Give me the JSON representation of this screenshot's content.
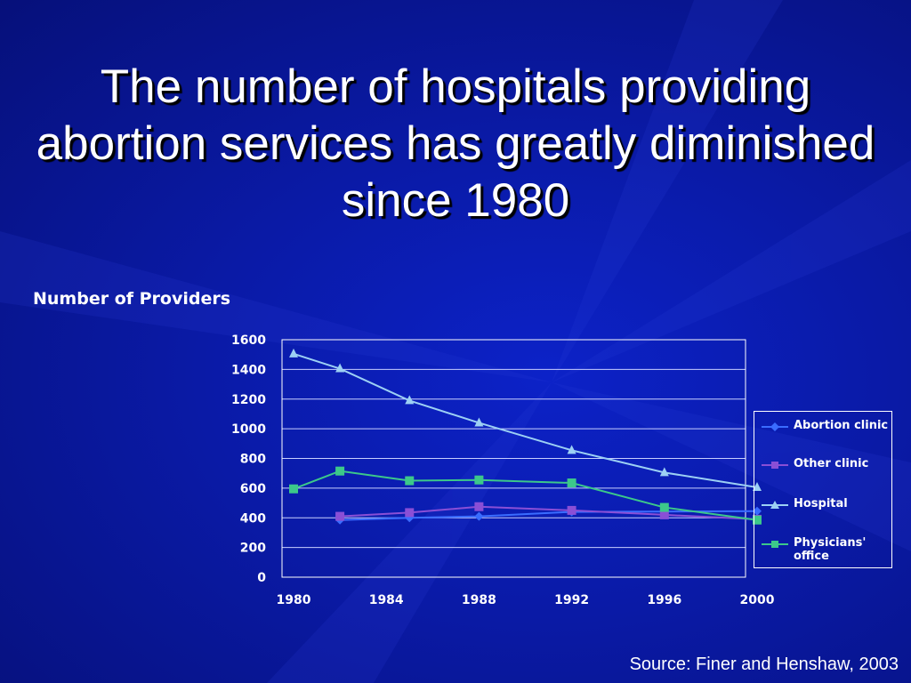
{
  "slide": {
    "title": "The number of hospitals providing abortion services has greatly diminished since 1980",
    "source": "Source: Finer and Henshaw, 2003"
  },
  "colors": {
    "background": "#0a1aa6",
    "abortion_clinic": "#3a6cff",
    "other_clinic": "#8a4fd6",
    "hospital": "#9cd0f4",
    "physicians_office": "#3cc88a"
  },
  "chart_data": {
    "type": "line",
    "title": "",
    "ylabel": "Number of Providers",
    "xlabel": "",
    "xlim": [
      1980,
      2000
    ],
    "ylim": [
      0,
      1600
    ],
    "x_ticks": [
      1980,
      1984,
      1988,
      1992,
      1996,
      2000
    ],
    "y_ticks": [
      0,
      200,
      400,
      600,
      800,
      1000,
      1200,
      1400,
      1600
    ],
    "grid": true,
    "legend_position": "right",
    "series": [
      {
        "name": "Abortion clinic",
        "marker": "diamond",
        "color": "#3a6cff",
        "x": [
          1982,
          1985,
          1988,
          1992,
          2000
        ],
        "y": [
          385,
          400,
          410,
          440,
          445
        ]
      },
      {
        "name": "Other clinic",
        "marker": "square",
        "color": "#8a4fd6",
        "x": [
          1982,
          1985,
          1988,
          1992,
          1996,
          2000
        ],
        "y": [
          410,
          435,
          475,
          450,
          420,
          390
        ]
      },
      {
        "name": "Hospital",
        "marker": "triangle",
        "color": "#9cd0f4",
        "x": [
          1980,
          1982,
          1985,
          1988,
          1992,
          1996,
          2000
        ],
        "y": [
          1505,
          1405,
          1190,
          1040,
          855,
          705,
          605
        ]
      },
      {
        "name": "Physicians' office",
        "marker": "square",
        "color": "#3cc88a",
        "x": [
          1980,
          1982,
          1985,
          1988,
          1992,
          1996,
          2000
        ],
        "y": [
          595,
          715,
          650,
          655,
          635,
          470,
          385
        ]
      }
    ]
  }
}
